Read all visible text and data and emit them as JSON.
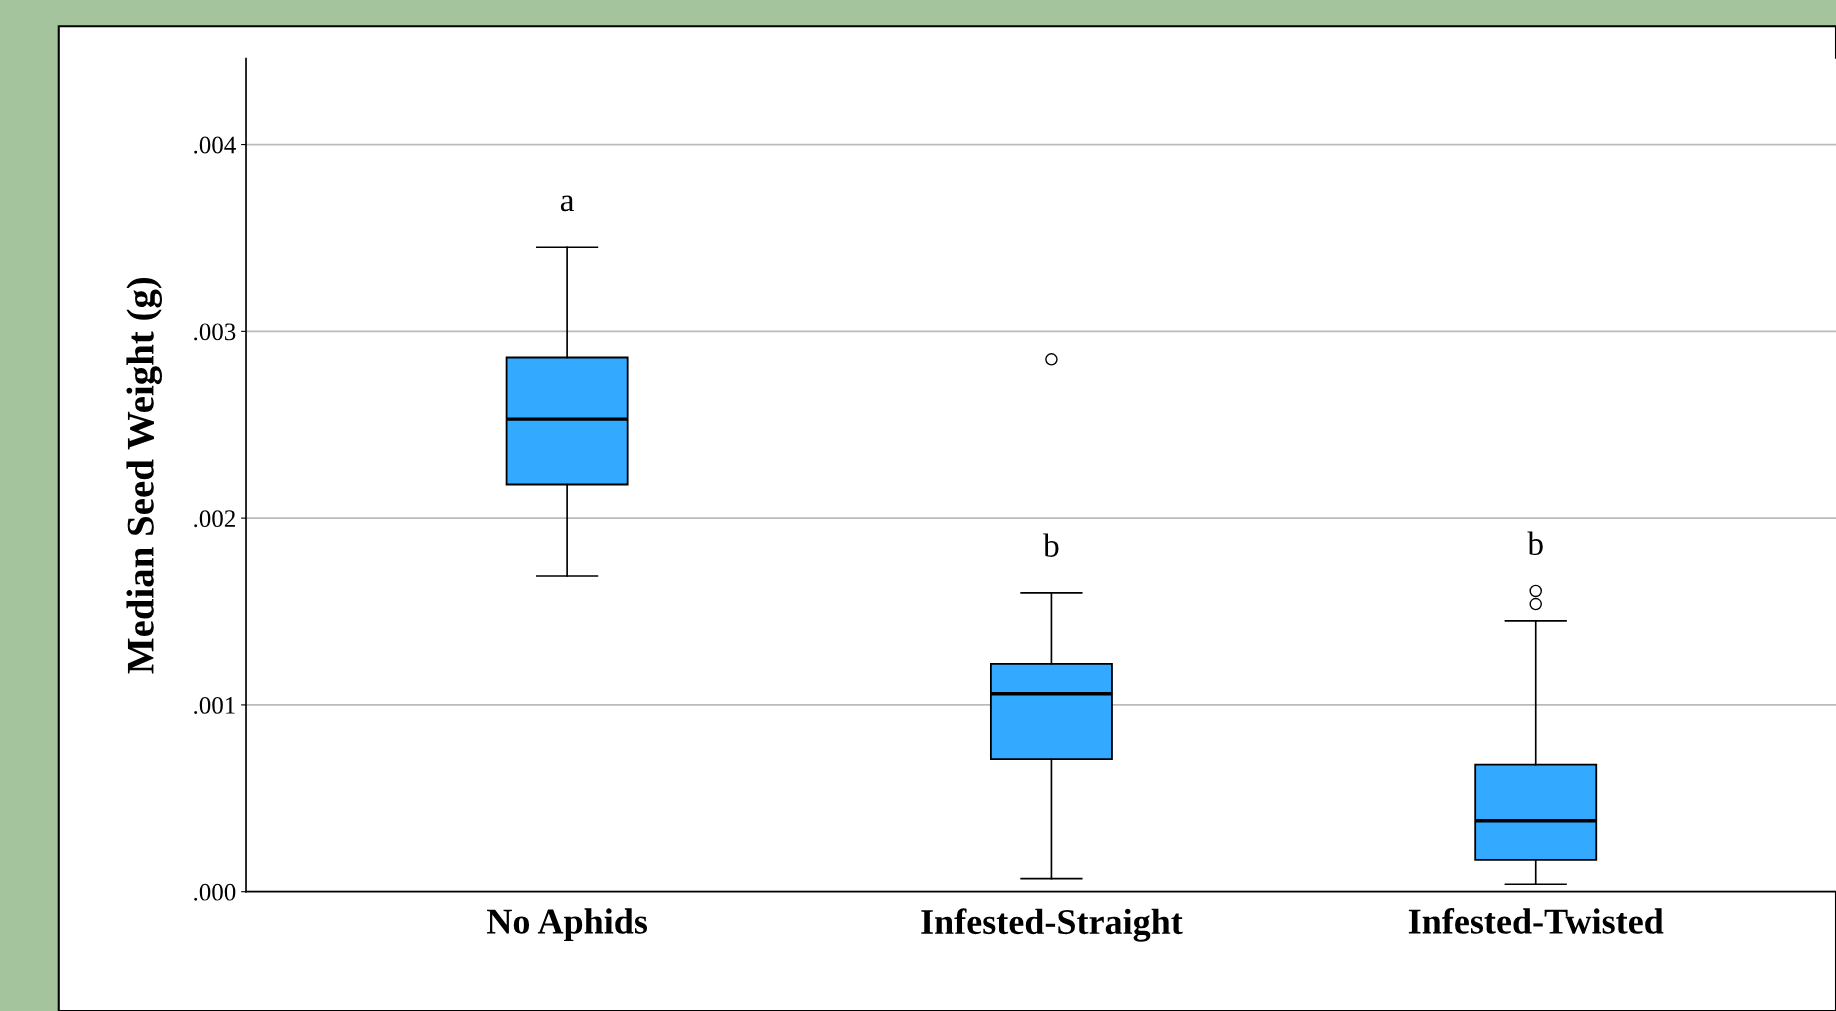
{
  "chart_data": {
    "type": "box",
    "ylabel": "Median Seed Weight (g)",
    "categories": [
      "No Aphids",
      "Infested-Straight",
      "Infested-Twisted"
    ],
    "boxes": [
      {
        "low": 0.00169,
        "q1": 0.00218,
        "median": 0.00253,
        "q3": 0.00286,
        "high": 0.00345
      },
      {
        "low": 7e-05,
        "q1": 0.00071,
        "median": 0.00106,
        "q3": 0.00122,
        "high": 0.0016,
        "outliers": [
          0.00285
        ]
      },
      {
        "low": 4e-05,
        "q1": 0.00017,
        "median": 0.00038,
        "q3": 0.00068,
        "high": 0.00145,
        "outliers": [
          0.00154,
          0.00161
        ]
      }
    ],
    "color": "#33aaff",
    "ylim": [
      0,
      0.00446
    ],
    "yticks": [
      {
        "value": 0,
        "label": ".000"
      },
      {
        "value": 0.001,
        "label": ".001"
      },
      {
        "value": 0.002,
        "label": ".002"
      },
      {
        "value": 0.003,
        "label": ".003"
      },
      {
        "value": 0.004,
        "label": ".004"
      }
    ],
    "grid": "y",
    "annotations": [
      "a",
      "b",
      "b"
    ]
  }
}
